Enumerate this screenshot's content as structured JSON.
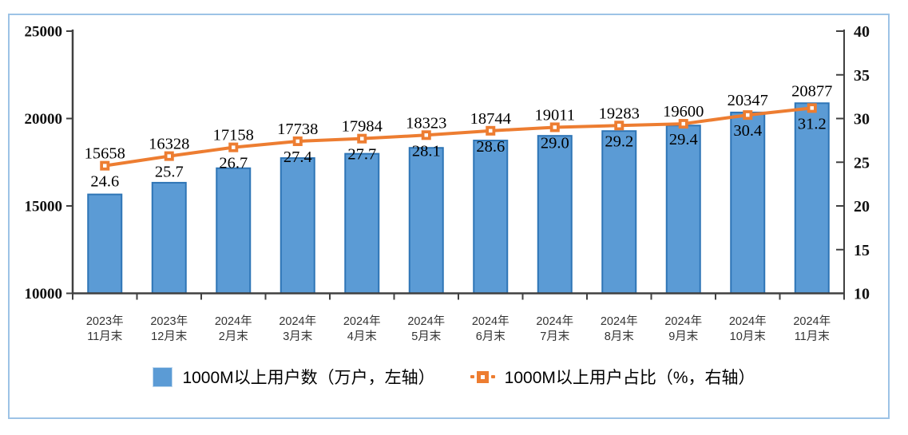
{
  "chart_data": {
    "type": "bar",
    "subtype": "combo-bar-line",
    "categories": [
      {
        "line1": "2023年",
        "line2": "11月末"
      },
      {
        "line1": "2023年",
        "line2": "12月末"
      },
      {
        "line1": "2024年",
        "line2": "2月末"
      },
      {
        "line1": "2024年",
        "line2": "3月末"
      },
      {
        "line1": "2024年",
        "line2": "4月末"
      },
      {
        "line1": "2024年",
        "line2": "5月末"
      },
      {
        "line1": "2024年",
        "line2": "6月末"
      },
      {
        "line1": "2024年",
        "line2": "7月末"
      },
      {
        "line1": "2024年",
        "line2": "8月末"
      },
      {
        "line1": "2024年",
        "line2": "9月末"
      },
      {
        "line1": "2024年",
        "line2": "10月末"
      },
      {
        "line1": "2024年",
        "line2": "11月末"
      }
    ],
    "series": [
      {
        "name": "1000M以上用户数（万户，左轴）",
        "type": "bar",
        "axis": "left",
        "values": [
          15658,
          16328,
          17158,
          17738,
          17984,
          18323,
          18744,
          19011,
          19283,
          19600,
          20347,
          20877
        ]
      },
      {
        "name": "1000M以上用户占比（%，右轴）",
        "type": "line",
        "axis": "right",
        "values": [
          24.6,
          25.7,
          26.7,
          27.4,
          27.7,
          28.1,
          28.6,
          29.0,
          29.2,
          29.4,
          30.4,
          31.2
        ],
        "labels": [
          "24.6",
          "25.7",
          "26.7",
          "27.4",
          "27.7",
          "28.1",
          "28.6",
          "29.0",
          "29.2",
          "29.4",
          "30.4",
          "31.2"
        ]
      }
    ],
    "left_axis": {
      "min": 10000,
      "max": 25000,
      "ticks": [
        25000,
        20000,
        15000,
        10000
      ]
    },
    "right_axis": {
      "min": 10,
      "max": 40,
      "ticks": [
        40,
        35,
        30,
        25,
        20,
        15,
        10
      ]
    },
    "grid": false,
    "legend_position": "bottom",
    "title": "",
    "xlabel": "",
    "ylabel": "",
    "colors": {
      "bar_fill": "#5B9BD5",
      "bar_stroke": "#2E75B6",
      "line": "#ED7D31",
      "frame_border": "#9DC3E6",
      "axis": "#404040"
    }
  },
  "legend": {
    "items": [
      {
        "label": "1000M以上用户数（万户，左轴）",
        "swatch": "bar"
      },
      {
        "label": "1000M以上用户占比（%，右轴）",
        "swatch": "line-marker"
      }
    ]
  }
}
